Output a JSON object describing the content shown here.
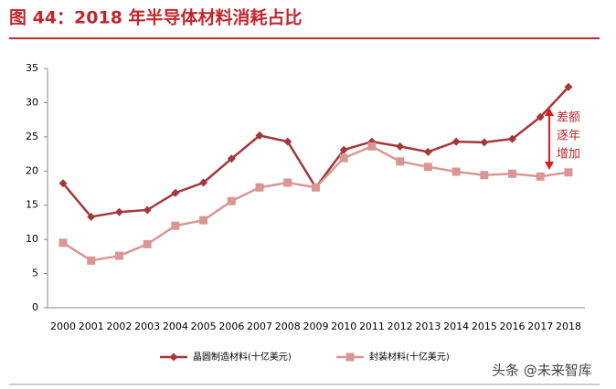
{
  "chart_data": {
    "type": "line",
    "title": "图 44：2018 年半导体材料消耗占比",
    "categories": [
      "2000",
      "2001",
      "2002",
      "2003",
      "2004",
      "2005",
      "2006",
      "2007",
      "2008",
      "2009",
      "2010",
      "2011",
      "2012",
      "2013",
      "2014",
      "2015",
      "2016",
      "2017",
      "2018"
    ],
    "series": [
      {
        "name": "晶圆制造材料(十亿美元)",
        "color": "#a5373b",
        "marker": "diamond",
        "values": [
          18.2,
          13.3,
          14.0,
          14.3,
          16.8,
          18.3,
          21.8,
          25.2,
          24.3,
          17.6,
          23.1,
          24.3,
          23.6,
          22.8,
          24.3,
          24.2,
          24.7,
          27.9,
          32.3
        ]
      },
      {
        "name": "封装材料(十亿美元)",
        "color": "#d99694",
        "marker": "square",
        "values": [
          9.5,
          6.9,
          7.6,
          9.3,
          12.0,
          12.8,
          15.6,
          17.6,
          18.3,
          17.6,
          21.9,
          23.6,
          21.4,
          20.6,
          19.9,
          19.4,
          19.6,
          19.2,
          19.8
        ]
      }
    ],
    "ylim": [
      0,
      35
    ],
    "yticks": [
      0,
      5,
      10,
      15,
      20,
      25,
      30,
      35
    ],
    "grid": false,
    "legend": "bottom",
    "annotation": [
      "差额",
      "逐年",
      "增加"
    ]
  },
  "watermark": "头条 @未来智库"
}
